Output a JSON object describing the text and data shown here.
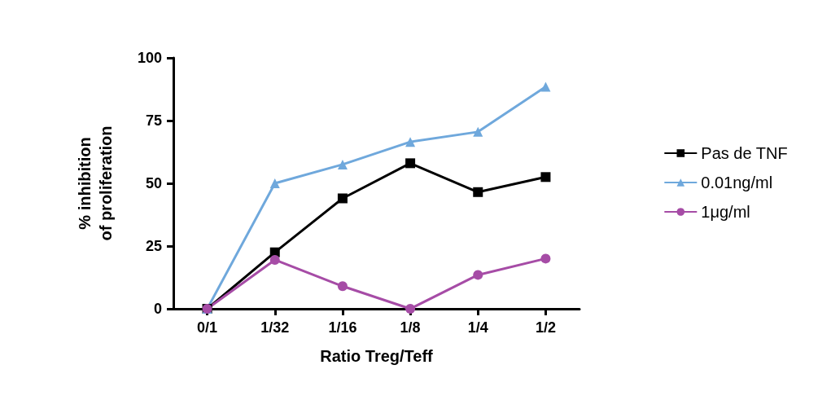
{
  "chart_data": {
    "type": "line",
    "xlabel": "Ratio Treg/Teff",
    "ylabel": "% inhibition\nof proliferation",
    "categories": [
      "0/1",
      "1/32",
      "1/16",
      "1/8",
      "1/4",
      "1/2"
    ],
    "series": [
      {
        "name": "Pas de TNF",
        "color": "#000000",
        "marker": "square",
        "values": [
          0,
          22.5,
          44,
          58,
          46.5,
          52.5
        ]
      },
      {
        "name": "0.01ng/ml",
        "color": "#6fa8dc",
        "marker": "triangle",
        "values": [
          0,
          50,
          57.5,
          66.5,
          70.5,
          88.5
        ]
      },
      {
        "name": "1μg/ml",
        "color": "#a64ca6",
        "marker": "circle",
        "values": [
          0,
          19.5,
          9,
          0,
          13.5,
          20
        ]
      }
    ],
    "ylim": [
      0,
      100
    ],
    "yticks": [
      0,
      25,
      50,
      75,
      100
    ],
    "grid": false,
    "legend": "right"
  }
}
